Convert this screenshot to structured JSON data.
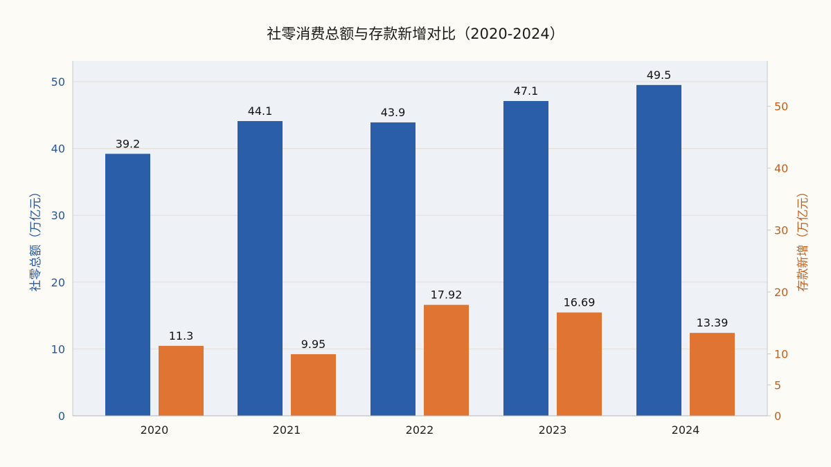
{
  "chart_data": {
    "type": "bar",
    "title": "社零消费总额与存款新增对比（2020-2024）",
    "categories": [
      "2020",
      "2021",
      "2022",
      "2023",
      "2024"
    ],
    "y_left": {
      "label": "社零总额（万亿元）",
      "ylim": [
        0,
        50
      ],
      "ticks": [
        0,
        10,
        20,
        30,
        40,
        50
      ],
      "color": "#24579f"
    },
    "y_right": {
      "label": "存款新增（万亿元）",
      "ylim": [
        0,
        55
      ],
      "ticks": [
        0,
        5,
        10,
        20,
        30,
        40,
        50
      ],
      "color": "#c2601f"
    },
    "series": [
      {
        "axis": "left",
        "color": "#2a5ea8",
        "values": [
          39.2,
          44.1,
          43.9,
          47.1,
          49.5
        ],
        "labels": [
          "39.2",
          "44.1",
          "43.9",
          "47.1",
          "49.5"
        ]
      },
      {
        "axis": "right",
        "color": "#e07533",
        "values": [
          11.3,
          9.95,
          17.92,
          16.69,
          13.39
        ],
        "labels": [
          "11.3",
          "9.95",
          "17.92",
          "16.69",
          "13.39"
        ]
      }
    ],
    "grid": true,
    "legend": "none"
  }
}
